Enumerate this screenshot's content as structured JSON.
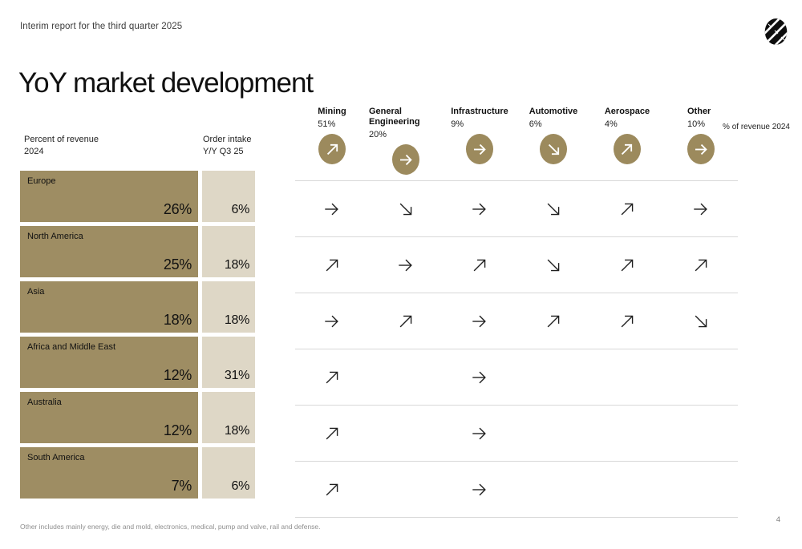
{
  "header": {
    "report_label": "Interim report for the third quarter 2025",
    "logo": "striped-oval-logo"
  },
  "title": "YoY market development",
  "left_table": {
    "revenue_header_line1": "Percent of revenue",
    "revenue_header_line2": "2024",
    "intake_header_line1": "Order intake",
    "intake_header_line2": "Y/Y Q3 25"
  },
  "segments": [
    {
      "label": "Mining",
      "share": "51%",
      "trend": "up"
    },
    {
      "label": "General Engineering",
      "share": "20%",
      "trend": "flat"
    },
    {
      "label": "Infrastructure",
      "share": "9%",
      "trend": "flat"
    },
    {
      "label": "Automotive",
      "share": "6%",
      "trend": "down"
    },
    {
      "label": "Aerospace",
      "share": "4%",
      "trend": "up"
    },
    {
      "label": "Other",
      "share": "10%",
      "trend": "flat"
    }
  ],
  "share_note": "% of revenue 2024",
  "regions": [
    {
      "name": "Europe",
      "revenue_share": "26%",
      "order_intake": "6%",
      "trends": [
        "flat",
        "down",
        "flat",
        "down",
        "up",
        "flat"
      ]
    },
    {
      "name": "North America",
      "revenue_share": "25%",
      "order_intake": "18%",
      "trends": [
        "up",
        "flat",
        "up",
        "down",
        "up",
        "up"
      ]
    },
    {
      "name": "Asia",
      "revenue_share": "18%",
      "order_intake": "18%",
      "trends": [
        "flat",
        "up",
        "flat",
        "up",
        "up",
        "down"
      ]
    },
    {
      "name": "Africa and Middle East",
      "revenue_share": "12%",
      "order_intake": "31%",
      "trends": [
        "up",
        null,
        "flat",
        null,
        null,
        null
      ]
    },
    {
      "name": "Australia",
      "revenue_share": "12%",
      "order_intake": "18%",
      "trends": [
        "up",
        null,
        "flat",
        null,
        null,
        null
      ]
    },
    {
      "name": "South America",
      "revenue_share": "7%",
      "order_intake": "6%",
      "trends": [
        "up",
        null,
        "flat",
        null,
        null,
        null
      ]
    }
  ],
  "footnote": "Other includes mainly energy, die and mold, electronics, medical, pump and valve, rail and defense.",
  "page_number": "4",
  "colors": {
    "region_bar": "#9e8d63",
    "intake_bar": "#ded7c6",
    "trend_circle": "#9c8a5d",
    "arrow": "#1f1f1f",
    "grid_line": "#d8d8d8"
  }
}
